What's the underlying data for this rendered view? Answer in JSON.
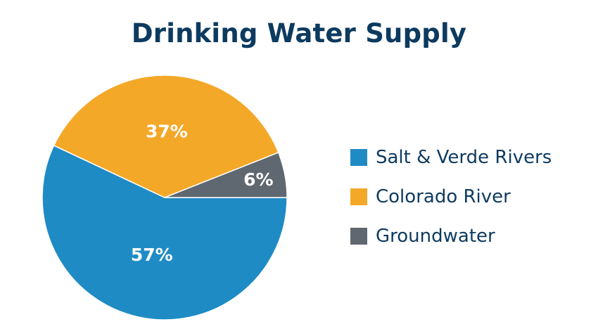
{
  "chart_data": {
    "type": "pie",
    "title": "Drinking Water Supply",
    "slices": [
      {
        "label": "Salt & Verde Rivers",
        "value": 57,
        "display": "57%",
        "color": "#1f8bc4"
      },
      {
        "label": "Colorado River",
        "value": 37,
        "display": "37%",
        "color": "#f4a828"
      },
      {
        "label": "Groundwater",
        "value": 6,
        "display": "6%",
        "color": "#5f6770"
      }
    ],
    "legend_position": "right"
  }
}
